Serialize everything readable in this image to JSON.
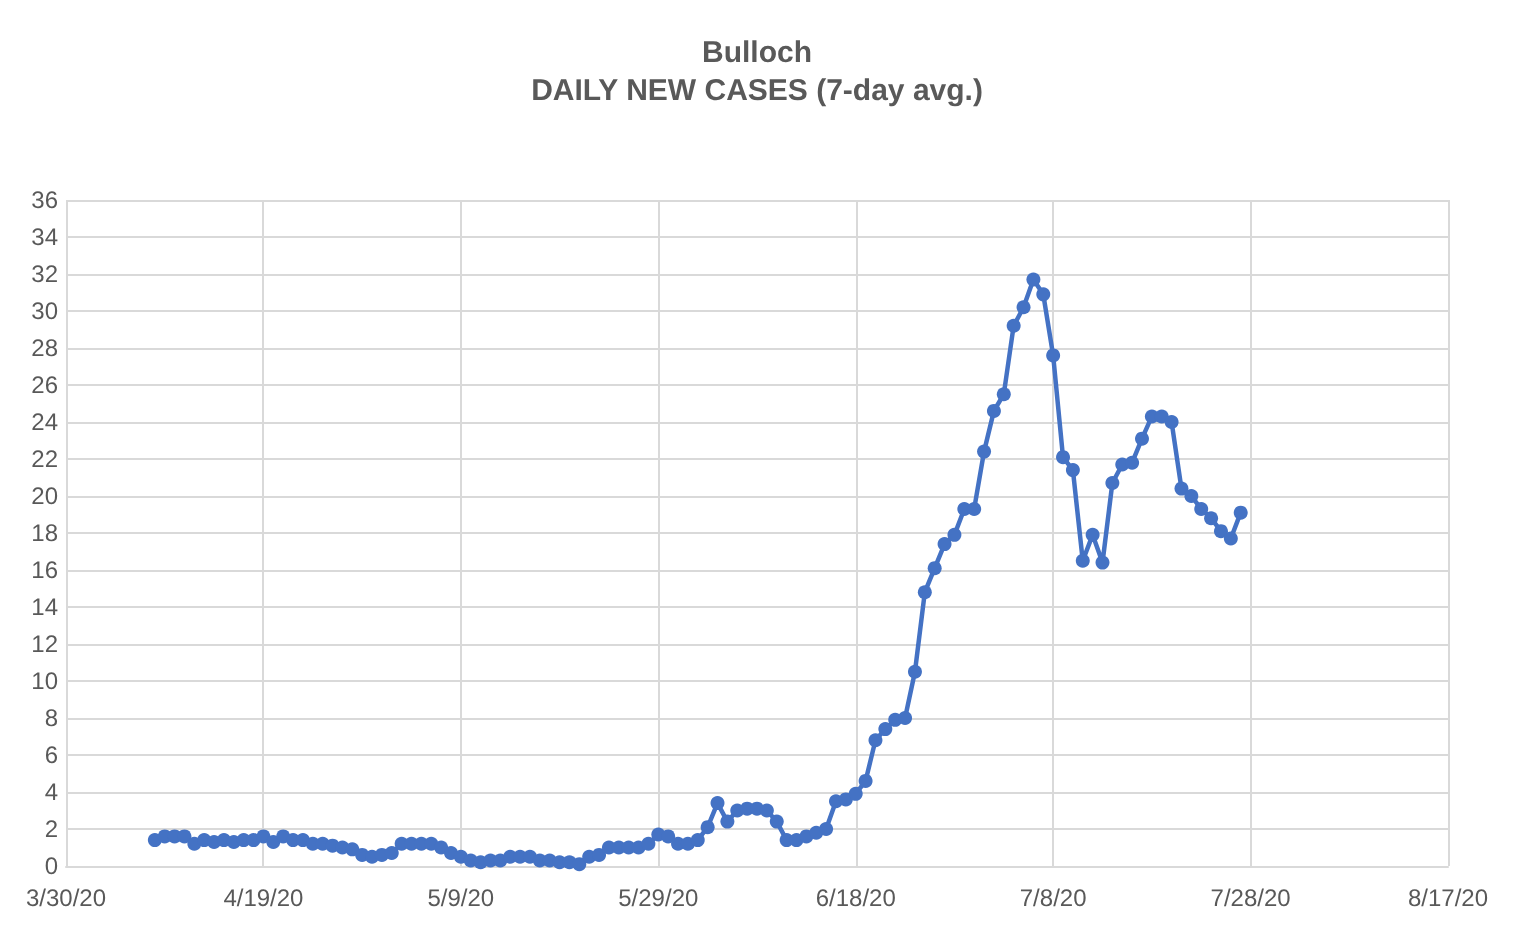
{
  "chart_data": {
    "type": "line",
    "title": "Bulloch",
    "subtitle": "DAILY NEW CASES (7-day avg.)",
    "x": [
      "2020-04-08",
      "2020-04-09",
      "2020-04-10",
      "2020-04-11",
      "2020-04-12",
      "2020-04-13",
      "2020-04-14",
      "2020-04-15",
      "2020-04-16",
      "2020-04-17",
      "2020-04-18",
      "2020-04-19",
      "2020-04-20",
      "2020-04-21",
      "2020-04-22",
      "2020-04-23",
      "2020-04-24",
      "2020-04-25",
      "2020-04-26",
      "2020-04-27",
      "2020-04-28",
      "2020-04-29",
      "2020-04-30",
      "2020-05-01",
      "2020-05-02",
      "2020-05-03",
      "2020-05-04",
      "2020-05-05",
      "2020-05-06",
      "2020-05-07",
      "2020-05-08",
      "2020-05-09",
      "2020-05-10",
      "2020-05-11",
      "2020-05-12",
      "2020-05-13",
      "2020-05-14",
      "2020-05-15",
      "2020-05-16",
      "2020-05-17",
      "2020-05-18",
      "2020-05-19",
      "2020-05-20",
      "2020-05-21",
      "2020-05-22",
      "2020-05-23",
      "2020-05-24",
      "2020-05-25",
      "2020-05-26",
      "2020-05-27",
      "2020-05-28",
      "2020-05-29",
      "2020-05-30",
      "2020-05-31",
      "2020-06-01",
      "2020-06-02",
      "2020-06-03",
      "2020-06-04",
      "2020-06-05",
      "2020-06-06",
      "2020-06-07",
      "2020-06-08",
      "2020-06-09",
      "2020-06-10",
      "2020-06-11",
      "2020-06-12",
      "2020-06-13",
      "2020-06-14",
      "2020-06-15",
      "2020-06-16",
      "2020-06-17",
      "2020-06-18",
      "2020-06-19",
      "2020-06-20",
      "2020-06-21",
      "2020-06-22",
      "2020-06-23",
      "2020-06-24",
      "2020-06-25",
      "2020-06-26",
      "2020-06-27",
      "2020-06-28",
      "2020-06-29",
      "2020-06-30",
      "2020-07-01",
      "2020-07-02",
      "2020-07-03",
      "2020-07-04",
      "2020-07-05",
      "2020-07-06",
      "2020-07-07",
      "2020-07-08",
      "2020-07-09",
      "2020-07-10",
      "2020-07-11",
      "2020-07-12",
      "2020-07-13",
      "2020-07-14",
      "2020-07-15",
      "2020-07-16",
      "2020-07-17",
      "2020-07-18",
      "2020-07-19",
      "2020-07-20",
      "2020-07-21",
      "2020-07-22",
      "2020-07-23",
      "2020-07-24",
      "2020-07-25",
      "2020-07-26",
      "2020-07-27"
    ],
    "series": [
      {
        "color": "#4472c4",
        "values": [
          1.4,
          1.6,
          1.6,
          1.6,
          1.2,
          1.4,
          1.3,
          1.4,
          1.3,
          1.4,
          1.4,
          1.6,
          1.3,
          1.6,
          1.4,
          1.4,
          1.2,
          1.2,
          1.1,
          1.0,
          0.9,
          0.6,
          0.5,
          0.6,
          0.7,
          1.2,
          1.2,
          1.2,
          1.2,
          1.0,
          0.7,
          0.5,
          0.3,
          0.2,
          0.3,
          0.3,
          0.5,
          0.5,
          0.5,
          0.3,
          0.3,
          0.2,
          0.2,
          0.1,
          0.5,
          0.6,
          1.0,
          1.0,
          1.0,
          1.0,
          1.2,
          1.7,
          1.6,
          1.2,
          1.2,
          1.4,
          2.1,
          3.4,
          2.4,
          3.0,
          3.1,
          3.1,
          3.0,
          2.4,
          1.4,
          1.4,
          1.6,
          1.8,
          2.0,
          3.5,
          3.6,
          3.9,
          4.6,
          6.8,
          7.4,
          7.9,
          8.0,
          10.5,
          14.8,
          16.1,
          17.4,
          17.9,
          19.3,
          19.3,
          22.4,
          24.6,
          25.5,
          29.2,
          30.2,
          31.7,
          30.9,
          27.6,
          22.1,
          21.4,
          16.5,
          17.9,
          16.4,
          20.7,
          21.7,
          21.8,
          23.1,
          24.3,
          24.3,
          24.0,
          20.4,
          20.0,
          19.3,
          18.8,
          18.1,
          17.7,
          19.1
        ]
      }
    ],
    "xlim": [
      "2020-03-30",
      "2020-08-17"
    ],
    "xticks": [
      {
        "value": "2020-03-30",
        "label": "3/30/20"
      },
      {
        "value": "2020-04-19",
        "label": "4/19/20"
      },
      {
        "value": "2020-05-09",
        "label": "5/9/20"
      },
      {
        "value": "2020-05-29",
        "label": "5/29/20"
      },
      {
        "value": "2020-06-18",
        "label": "6/18/20"
      },
      {
        "value": "2020-07-08",
        "label": "7/8/20"
      },
      {
        "value": "2020-07-28",
        "label": "7/28/20"
      },
      {
        "value": "2020-08-17",
        "label": "8/17/20"
      }
    ],
    "ylim": [
      0,
      36
    ],
    "yticks": [
      0,
      2,
      4,
      6,
      8,
      10,
      12,
      14,
      16,
      18,
      20,
      22,
      24,
      26,
      28,
      30,
      32,
      34,
      36
    ],
    "grid": true,
    "marker": "circle",
    "line_style": "solid"
  }
}
